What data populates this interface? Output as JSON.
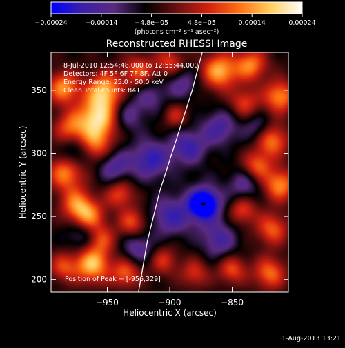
{
  "chart_data": {
    "type": "heatmap",
    "title": "Reconstructed RHESSI Image",
    "xlabel": "Heliocentric X (arcsec)",
    "ylabel": "Heliocentric Y (arcsec)",
    "xlim": [
      -995,
      -805
    ],
    "ylim": [
      190,
      380
    ],
    "x_ticks": [
      -950,
      -900,
      -850
    ],
    "x_tick_labels": [
      "−950",
      "−900",
      "−850"
    ],
    "y_ticks": [
      200,
      250,
      300,
      350
    ],
    "y_tick_labels": [
      "200",
      "250",
      "300",
      "350"
    ],
    "colorbar": {
      "range": [
        -0.00024,
        0.00024
      ],
      "tick_labels": [
        "−0.00024",
        "−0.00014",
        "−4.8e−05",
        "4.8e−05",
        "0.00014",
        "0.00024"
      ],
      "unit_label": "(photons cm⁻² s⁻¹ asec⁻²)",
      "colors": [
        "#0000ff",
        "#3a20a8",
        "#5a2a80",
        "#000000",
        "#6a1010",
        "#d02010",
        "#ff7010",
        "#ffd060",
        "#ffffff"
      ]
    },
    "annotations": [
      "8-Jul-2010 12:54:48.000 to 12:55:44.000",
      "Detectors: 4F 5F 6F 7F 8F, Att 0",
      "Energy Range: 25.0 - 50.0 keV",
      "Clean    Total counts: 841."
    ],
    "peak_label": "Position of Peak = [-956,329]",
    "peak_marker": [
      -873,
      260
    ],
    "limb_curve": [
      [
        -925,
        190
      ],
      [
        -918,
        230
      ],
      [
        -908,
        270
      ],
      [
        -895,
        310
      ],
      [
        -882,
        350
      ],
      [
        -874,
        380
      ]
    ],
    "blobs": [
      {
        "x": -957,
        "y": 328,
        "v": 1.0,
        "s": 12
      },
      {
        "x": -952,
        "y": 350,
        "v": 0.8,
        "s": 10
      },
      {
        "x": -960,
        "y": 305,
        "v": 0.6,
        "s": 10
      },
      {
        "x": -985,
        "y": 352,
        "v": 0.75,
        "s": 9
      },
      {
        "x": -980,
        "y": 320,
        "v": 0.55,
        "s": 9
      },
      {
        "x": -983,
        "y": 285,
        "v": 0.75,
        "s": 10
      },
      {
        "x": -975,
        "y": 260,
        "v": 0.6,
        "s": 9
      },
      {
        "x": -965,
        "y": 250,
        "v": 0.7,
        "s": 9
      },
      {
        "x": -940,
        "y": 268,
        "v": 0.55,
        "s": 8
      },
      {
        "x": -930,
        "y": 245,
        "v": 0.55,
        "s": 8
      },
      {
        "x": -955,
        "y": 232,
        "v": 0.5,
        "s": 8
      },
      {
        "x": -962,
        "y": 212,
        "v": 0.9,
        "s": 10
      },
      {
        "x": -935,
        "y": 205,
        "v": 0.6,
        "s": 8
      },
      {
        "x": -985,
        "y": 210,
        "v": 0.5,
        "s": 8
      },
      {
        "x": -925,
        "y": 365,
        "v": 0.55,
        "s": 9
      },
      {
        "x": -900,
        "y": 372,
        "v": 0.5,
        "s": 8
      },
      {
        "x": -860,
        "y": 365,
        "v": 0.85,
        "s": 10
      },
      {
        "x": -835,
        "y": 370,
        "v": 0.7,
        "s": 9
      },
      {
        "x": -812,
        "y": 345,
        "v": 0.75,
        "s": 9
      },
      {
        "x": -840,
        "y": 340,
        "v": 0.5,
        "s": 8
      },
      {
        "x": -818,
        "y": 310,
        "v": 0.7,
        "s": 9
      },
      {
        "x": -830,
        "y": 290,
        "v": 0.6,
        "s": 8
      },
      {
        "x": -812,
        "y": 275,
        "v": 0.75,
        "s": 9
      },
      {
        "x": -842,
        "y": 255,
        "v": 0.55,
        "s": 8
      },
      {
        "x": -818,
        "y": 240,
        "v": 0.6,
        "s": 9
      },
      {
        "x": -820,
        "y": 205,
        "v": 0.65,
        "s": 9
      },
      {
        "x": -850,
        "y": 208,
        "v": 0.55,
        "s": 8
      },
      {
        "x": -880,
        "y": 205,
        "v": 0.45,
        "s": 8
      },
      {
        "x": -905,
        "y": 215,
        "v": 0.45,
        "s": 8
      },
      {
        "x": -895,
        "y": 330,
        "v": 0.4,
        "s": 7
      },
      {
        "x": -873,
        "y": 260,
        "v": -1.0,
        "s": 7
      },
      {
        "x": -872,
        "y": 258,
        "v": -0.4,
        "s": 14
      },
      {
        "x": -915,
        "y": 295,
        "v": -0.6,
        "s": 11
      },
      {
        "x": -900,
        "y": 250,
        "v": -0.5,
        "s": 11
      },
      {
        "x": -885,
        "y": 305,
        "v": -0.55,
        "s": 10
      },
      {
        "x": -860,
        "y": 320,
        "v": -0.5,
        "s": 10
      },
      {
        "x": -945,
        "y": 290,
        "v": -0.5,
        "s": 10
      },
      {
        "x": -935,
        "y": 330,
        "v": -0.45,
        "s": 10
      },
      {
        "x": -975,
        "y": 300,
        "v": -0.5,
        "s": 9
      },
      {
        "x": -970,
        "y": 235,
        "v": -0.4,
        "s": 9
      },
      {
        "x": -925,
        "y": 225,
        "v": -0.45,
        "s": 9
      },
      {
        "x": -860,
        "y": 230,
        "v": -0.45,
        "s": 10
      },
      {
        "x": -840,
        "y": 275,
        "v": -0.4,
        "s": 9
      },
      {
        "x": -890,
        "y": 355,
        "v": -0.4,
        "s": 9
      },
      {
        "x": -915,
        "y": 345,
        "v": -0.35,
        "s": 9
      },
      {
        "x": -830,
        "y": 320,
        "v": -0.35,
        "s": 8
      }
    ]
  },
  "footer_timestamp": "1-Aug-2013 13:21"
}
